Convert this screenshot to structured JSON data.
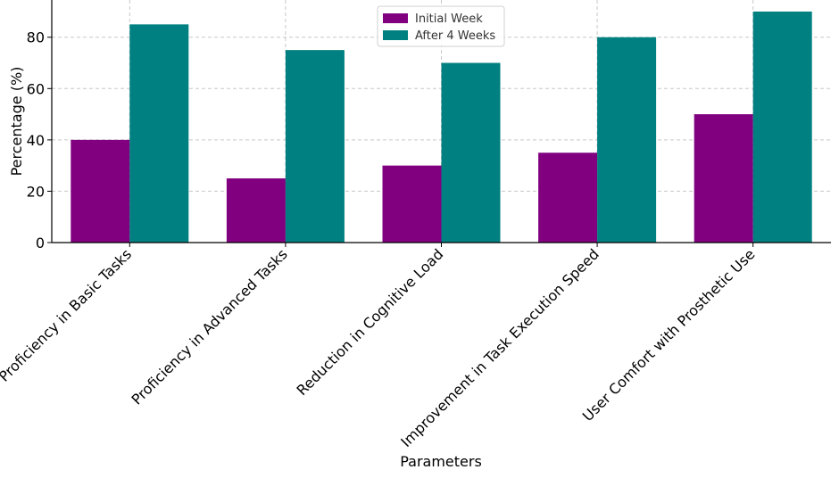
{
  "chart_data": {
    "type": "bar",
    "title": "",
    "xlabel": "Parameters",
    "ylabel": "Percentage (%)",
    "categories": [
      "Proficiency in Basic Tasks",
      "Proficiency in Advanced Tasks",
      "Reduction in Cognitive Load",
      "Improvement in Task Execution Speed",
      "User Comfort with Prosthetic Use"
    ],
    "series": [
      {
        "name": "Initial Week",
        "color": "#800080",
        "values": [
          40,
          25,
          30,
          35,
          50
        ]
      },
      {
        "name": "After 4 Weeks",
        "color": "#008080",
        "values": [
          85,
          75,
          70,
          80,
          90
        ]
      }
    ],
    "ylim": [
      0,
      94.5
    ],
    "yticks": [
      0,
      20,
      40,
      60,
      80
    ],
    "grid": true,
    "legend_position": "top-center"
  }
}
